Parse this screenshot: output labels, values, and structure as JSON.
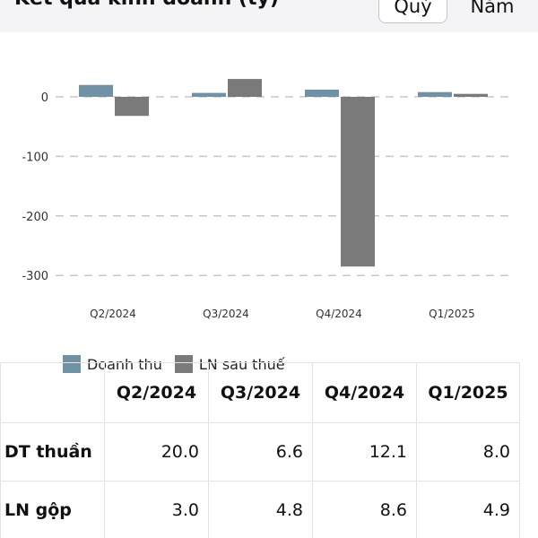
{
  "header": {
    "title": "Kết quả kinh doanh (tỷ)",
    "tabs": [
      {
        "label": "Quý",
        "selected": true
      },
      {
        "label": "Năm",
        "selected": false
      }
    ]
  },
  "colors": {
    "revenue": "#6f92a6",
    "profit": "#7a7a7a",
    "gridline": "#c8c8c8"
  },
  "chart_data": {
    "type": "bar",
    "categories": [
      "Q2/2024",
      "Q3/2024",
      "Q4/2024",
      "Q1/2025"
    ],
    "series": [
      {
        "name": "Doanh thu",
        "values": [
          20.0,
          6.6,
          12.1,
          8.0
        ]
      },
      {
        "name": "LN sau thuế",
        "values": [
          -32,
          30,
          -285,
          5
        ]
      }
    ],
    "yticks": [
      0,
      -100,
      -200,
      -300
    ],
    "ylim": [
      -310,
      40
    ],
    "grid": true,
    "legend_position": "bottom-left"
  },
  "table": {
    "headers": [
      "",
      "Q2/2024",
      "Q3/2024",
      "Q4/2024",
      "Q1/2025"
    ],
    "rows": [
      {
        "label": "DT thuần",
        "values": [
          "20.0",
          "6.6",
          "12.1",
          "8.0"
        ]
      },
      {
        "label": "LN gộp",
        "values": [
          "3.0",
          "4.8",
          "8.6",
          "4.9"
        ]
      }
    ]
  }
}
